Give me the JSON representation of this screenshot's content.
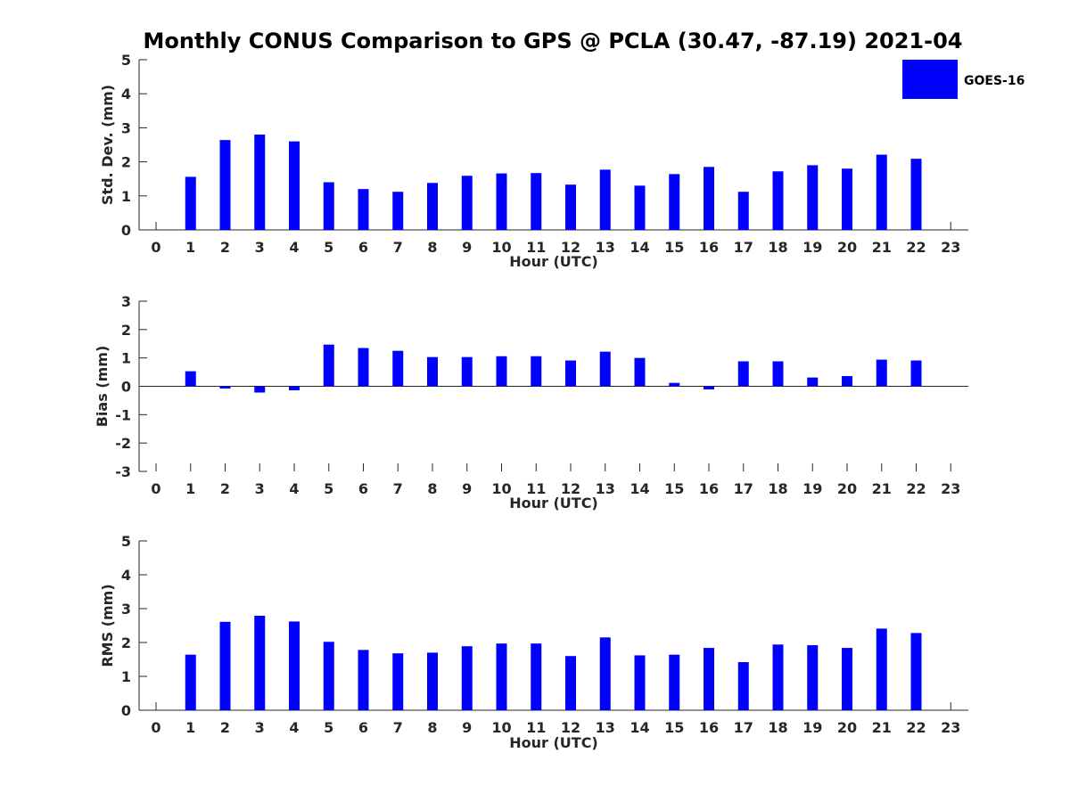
{
  "title": "Monthly CONUS Comparison to GPS @ PCLA (30.47, -87.19) 2021-04",
  "legend": {
    "label": "GOES-16",
    "color": "#0000ff",
    "placement": "top-right"
  },
  "chart_data": [
    {
      "type": "bar",
      "xlabel": "Hour (UTC)",
      "ylabel": "Std. Dev. (mm)",
      "ylim": [
        0,
        5
      ],
      "yticks": [
        "0",
        "1",
        "2",
        "3",
        "4",
        "5"
      ],
      "categories": [
        "0",
        "1",
        "2",
        "3",
        "4",
        "5",
        "6",
        "7",
        "8",
        "9",
        "10",
        "11",
        "12",
        "13",
        "14",
        "15",
        "16",
        "17",
        "18",
        "19",
        "20",
        "21",
        "22",
        "23"
      ],
      "series": [
        {
          "name": "GOES-16",
          "color": "#0000ff",
          "values": [
            null,
            1.56,
            2.64,
            2.8,
            2.6,
            1.4,
            1.2,
            1.12,
            1.38,
            1.59,
            1.66,
            1.67,
            1.33,
            1.77,
            1.3,
            1.64,
            1.85,
            1.12,
            1.72,
            1.9,
            1.8,
            2.21,
            2.09,
            null
          ]
        }
      ]
    },
    {
      "type": "bar",
      "xlabel": "Hour (UTC)",
      "ylabel": "Bias (mm)",
      "ylim": [
        -3,
        3
      ],
      "yticks": [
        "-3",
        "-2",
        "-1",
        "0",
        "1",
        "2",
        "3"
      ],
      "categories": [
        "0",
        "1",
        "2",
        "3",
        "4",
        "5",
        "6",
        "7",
        "8",
        "9",
        "10",
        "11",
        "12",
        "13",
        "14",
        "15",
        "16",
        "17",
        "18",
        "19",
        "20",
        "21",
        "22",
        "23"
      ],
      "series": [
        {
          "name": "GOES-16",
          "color": "#0000ff",
          "values": [
            null,
            0.53,
            -0.08,
            -0.22,
            -0.14,
            1.47,
            1.35,
            1.25,
            1.03,
            1.03,
            1.06,
            1.06,
            0.91,
            1.22,
            1.0,
            0.12,
            -0.11,
            0.88,
            0.88,
            0.31,
            0.36,
            0.94,
            0.91,
            null
          ]
        }
      ]
    },
    {
      "type": "bar",
      "xlabel": "Hour (UTC)",
      "ylabel": "RMS (mm)",
      "ylim": [
        0,
        5
      ],
      "yticks": [
        "0",
        "1",
        "2",
        "3",
        "4",
        "5"
      ],
      "categories": [
        "0",
        "1",
        "2",
        "3",
        "4",
        "5",
        "6",
        "7",
        "8",
        "9",
        "10",
        "11",
        "12",
        "13",
        "14",
        "15",
        "16",
        "17",
        "18",
        "19",
        "20",
        "21",
        "22",
        "23"
      ],
      "series": [
        {
          "name": "GOES-16",
          "color": "#0000ff",
          "values": [
            null,
            1.64,
            2.61,
            2.79,
            2.62,
            2.02,
            1.78,
            1.68,
            1.7,
            1.89,
            1.97,
            1.97,
            1.6,
            2.15,
            1.62,
            1.64,
            1.84,
            1.42,
            1.94,
            1.92,
            1.84,
            2.41,
            2.28,
            null
          ]
        }
      ]
    }
  ]
}
